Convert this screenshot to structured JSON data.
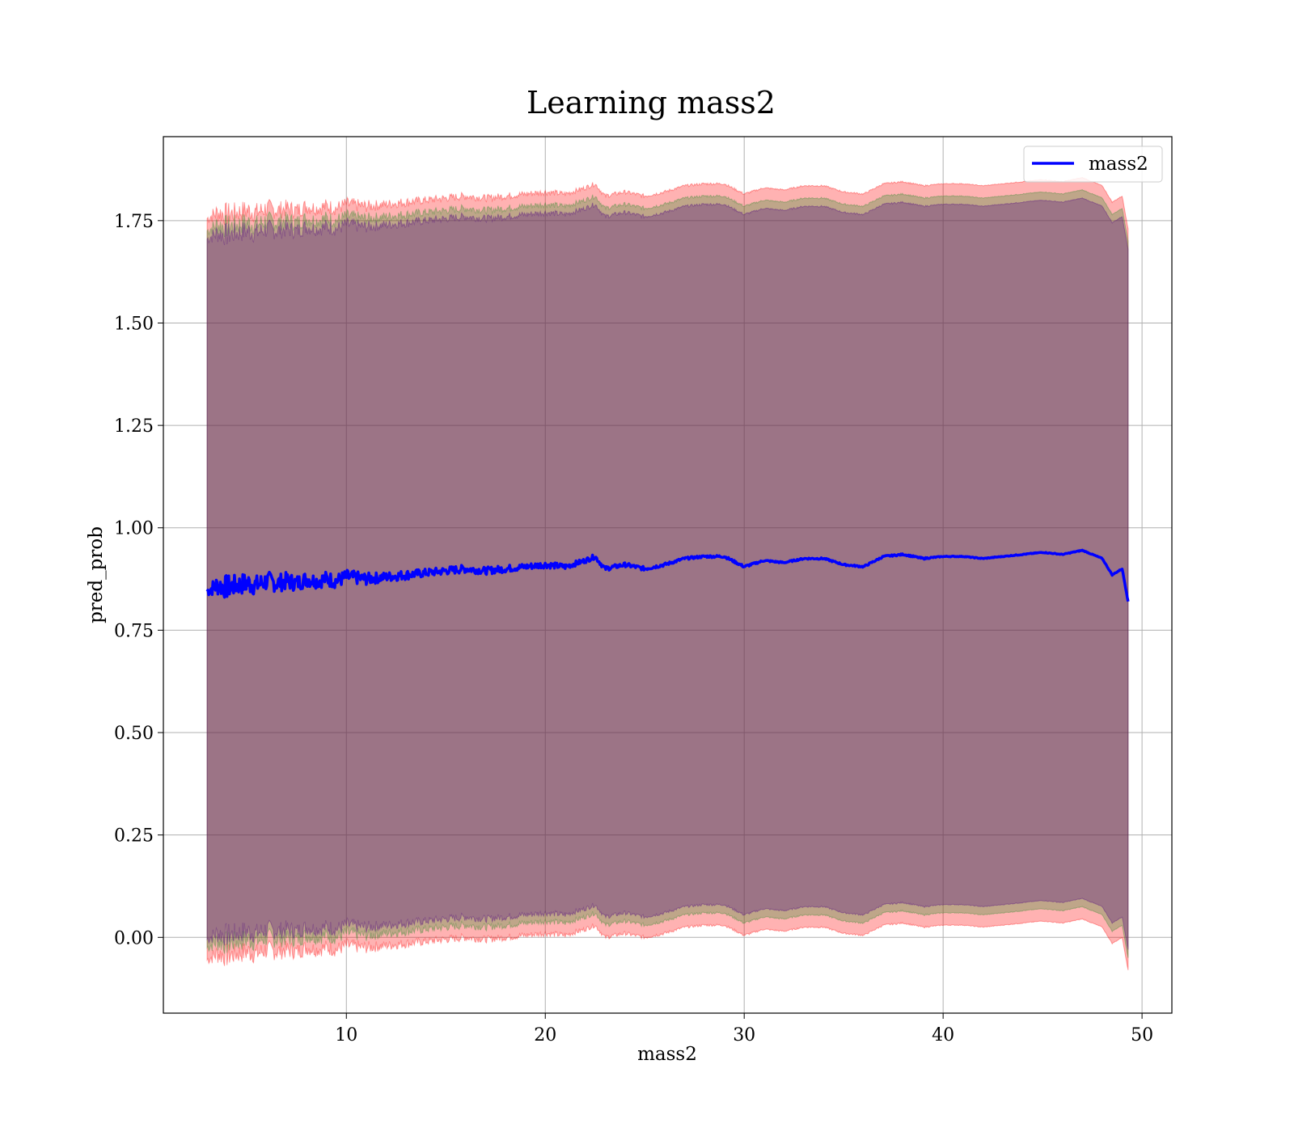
{
  "chart_data": {
    "type": "line",
    "title": "Learning mass2",
    "xlabel": "mass2",
    "ylabel": "pred_prob",
    "xlim": [
      0.8,
      51.5
    ],
    "ylim": [
      -0.185,
      1.955
    ],
    "xticks": [
      10,
      20,
      30,
      40,
      50
    ],
    "yticks": [
      0.0,
      0.25,
      0.5,
      0.75,
      1.0,
      1.25,
      1.5,
      1.75
    ],
    "xtick_labels": [
      "10",
      "20",
      "30",
      "40",
      "50"
    ],
    "ytick_labels": [
      "0.00",
      "0.25",
      "0.50",
      "0.75",
      "1.00",
      "1.25",
      "1.50",
      "1.75"
    ],
    "grid": true,
    "legend": {
      "position": "top-right",
      "entries": [
        "mass2"
      ]
    },
    "series": [
      {
        "name": "mass2",
        "color": "#0000ff",
        "x": [
          3.0,
          3.5,
          4.0,
          4.5,
          5.0,
          5.5,
          6.0,
          6.5,
          7.0,
          7.5,
          8.0,
          8.5,
          9.0,
          9.5,
          10.0,
          11.0,
          12.0,
          13.0,
          14.0,
          15.0,
          16.0,
          17.0,
          18.0,
          19.0,
          20.0,
          21.0,
          22.0,
          22.5,
          23.0,
          24.0,
          25.0,
          26.0,
          27.0,
          28.0,
          29.0,
          30.0,
          31.0,
          32.0,
          33.0,
          34.0,
          35.0,
          36.0,
          37.0,
          38.0,
          39.0,
          40.0,
          41.0,
          42.0,
          43.0,
          44.0,
          45.0,
          46.0,
          47.0,
          47.5,
          48.0,
          48.5,
          49.0,
          49.3
        ],
        "y": [
          0.845,
          0.86,
          0.855,
          0.86,
          0.865,
          0.86,
          0.87,
          0.865,
          0.87,
          0.865,
          0.875,
          0.87,
          0.875,
          0.87,
          0.88,
          0.875,
          0.88,
          0.885,
          0.89,
          0.895,
          0.9,
          0.895,
          0.9,
          0.905,
          0.91,
          0.905,
          0.92,
          0.93,
          0.9,
          0.91,
          0.9,
          0.91,
          0.925,
          0.93,
          0.93,
          0.905,
          0.92,
          0.915,
          0.925,
          0.925,
          0.91,
          0.905,
          0.93,
          0.935,
          0.925,
          0.93,
          0.93,
          0.925,
          0.93,
          0.935,
          0.94,
          0.935,
          0.945,
          0.935,
          0.925,
          0.885,
          0.9,
          0.82
        ],
        "noise": [
          0.012,
          0.025,
          0.03,
          0.025,
          0.028,
          0.025,
          0.025,
          0.022,
          0.022,
          0.02,
          0.02,
          0.018,
          0.02,
          0.018,
          0.018,
          0.015,
          0.012,
          0.012,
          0.01,
          0.01,
          0.01,
          0.009,
          0.009,
          0.008,
          0.008,
          0.007,
          0.006,
          0.006,
          0.006,
          0.005,
          0.005,
          0.004,
          0.003,
          0.003,
          0.003,
          0.003,
          0.002,
          0.002,
          0.002,
          0.002,
          0.002,
          0.002,
          0.002,
          0.002,
          0.002,
          0.001,
          0.001,
          0.001,
          0.001,
          0.001,
          0.001,
          0.001,
          0.001,
          0.001,
          0.001,
          0.001,
          0.001,
          0.001
        ]
      }
    ],
    "bands": [
      {
        "color": "#ff0000",
        "alpha": 0.3,
        "offset_lower": -0.9,
        "offset_upper": 0.91
      },
      {
        "color": "#2a8a2a",
        "alpha": 0.3,
        "offset_lower": -0.87,
        "offset_upper": 0.88
      },
      {
        "color": "#4b0082",
        "alpha": 0.3,
        "offset_lower": -0.85,
        "offset_upper": 0.86
      }
    ]
  }
}
